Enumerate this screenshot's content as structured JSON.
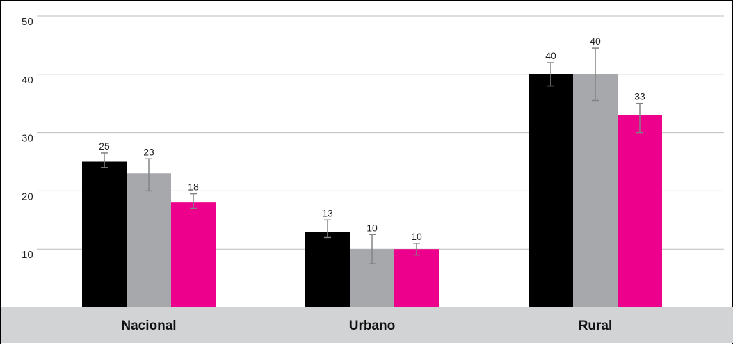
{
  "chart_data": {
    "type": "bar",
    "categories": [
      "Nacional",
      "Urbano",
      "Rural"
    ],
    "series": [
      {
        "color": "#000000",
        "values": [
          25,
          13,
          40
        ],
        "error_low": [
          24,
          12,
          38
        ],
        "error_high": [
          26.5,
          15,
          42
        ],
        "labels": [
          "25",
          "13",
          "40"
        ]
      },
      {
        "color": "#a6a8ab",
        "values": [
          23,
          10,
          40
        ],
        "error_low": [
          20,
          7.5,
          35.5
        ],
        "error_high": [
          25.5,
          12.5,
          44.5
        ],
        "labels": [
          "23",
          "10",
          "40"
        ]
      },
      {
        "color": "#ec008c",
        "values": [
          18,
          10,
          33
        ],
        "error_low": [
          17,
          9,
          30
        ],
        "error_high": [
          19.5,
          11,
          35
        ],
        "labels": [
          "18",
          "10",
          "33"
        ]
      }
    ],
    "y_ticks": [
      "10",
      "20",
      "30",
      "40",
      "50"
    ],
    "ylim": [
      0,
      50
    ],
    "grid": true,
    "category_band_color": "#d1d3d4"
  }
}
